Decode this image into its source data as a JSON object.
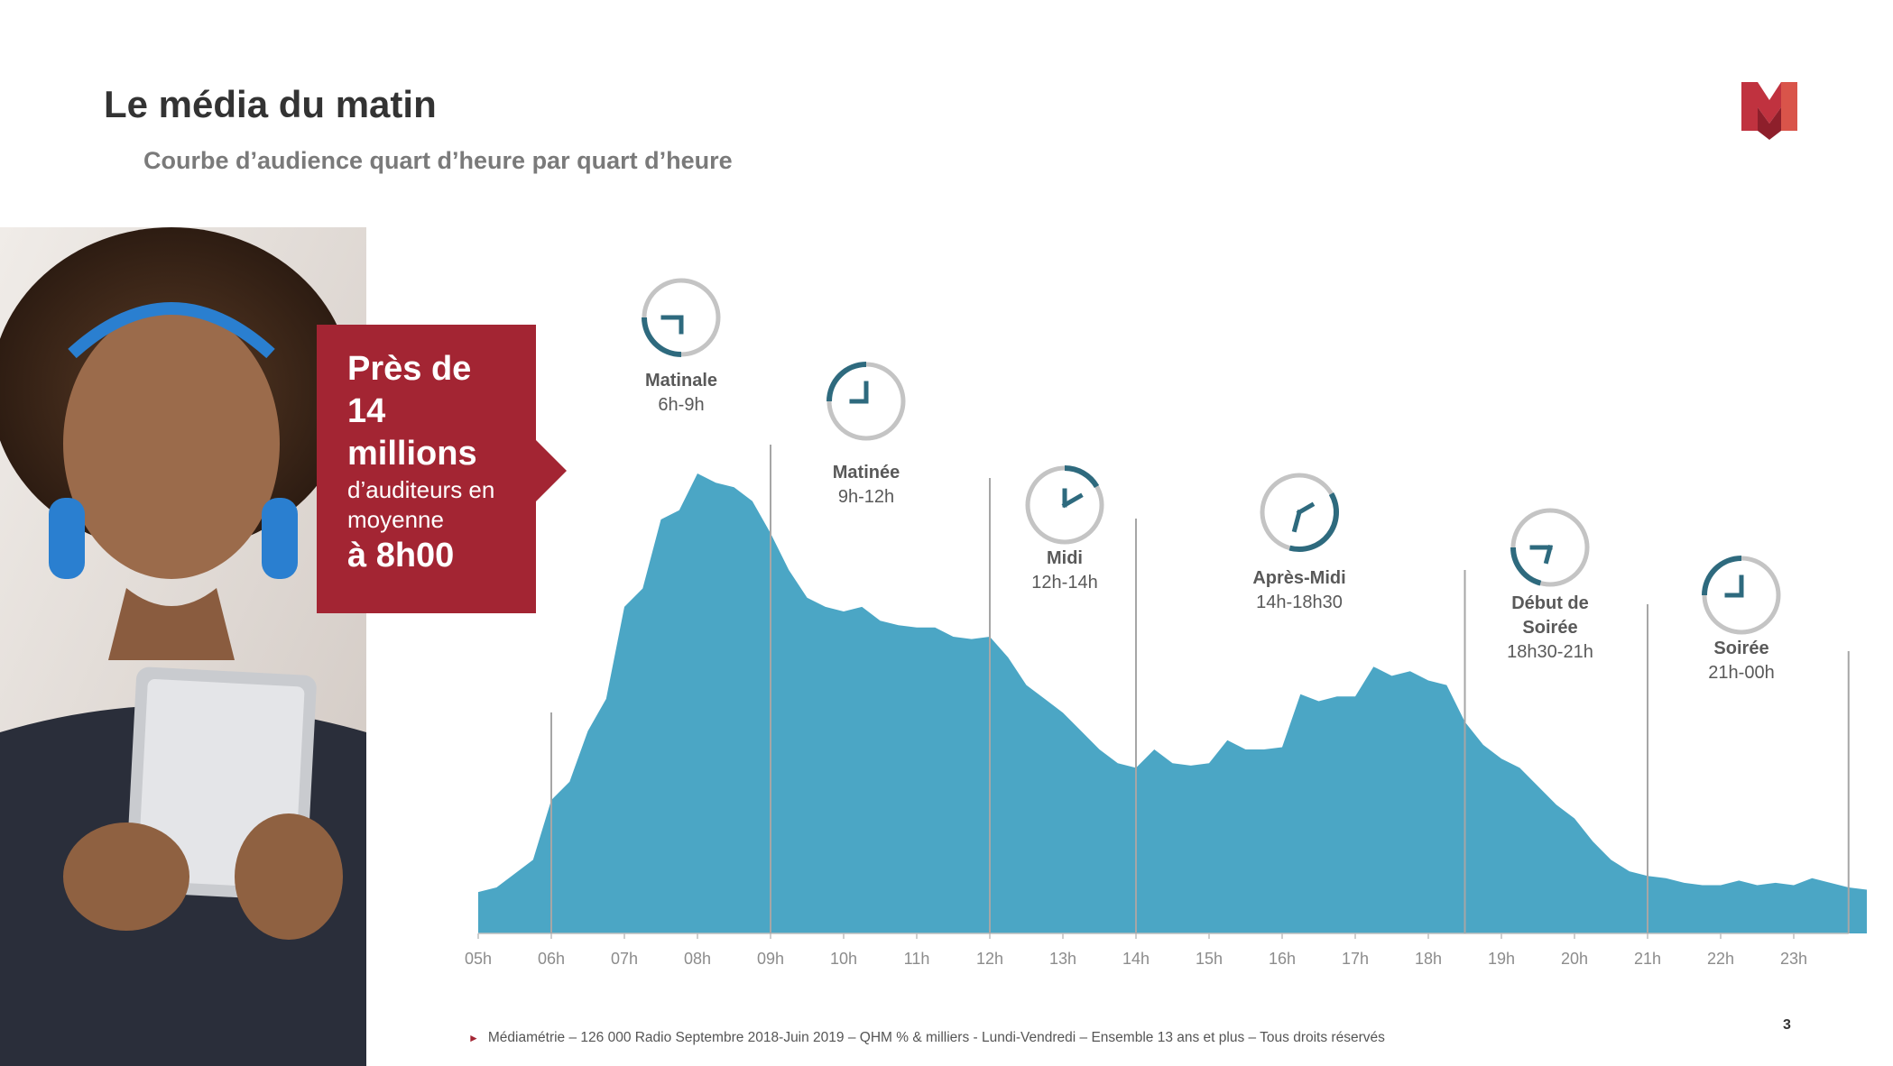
{
  "header": {
    "title": "Le média du matin",
    "subtitle": "Courbe d’audience quart d’heure par quart d’heure"
  },
  "callout": {
    "line1": "Près de",
    "line2": "14",
    "line3": "millions",
    "line4": "d’auditeurs en",
    "line5": "moyenne",
    "line6": "à 8h00"
  },
  "colors": {
    "area": "#4ba6c5",
    "brand_red": "#a32533",
    "clock_teal": "#2e6a7e",
    "clock_grey": "#c4c4c4"
  },
  "chart_data": {
    "type": "area",
    "x_ticks": [
      "05h",
      "06h",
      "07h",
      "08h",
      "09h",
      "10h",
      "11h",
      "12h",
      "13h",
      "14h",
      "15h",
      "16h",
      "17h",
      "18h",
      "19h",
      "20h",
      "21h",
      "22h",
      "23h"
    ],
    "x_start_hour": 5,
    "x_end_hour": 23.75,
    "step_hours": 0.25,
    "ylim": [
      0,
      100
    ],
    "values": [
      9,
      10,
      13,
      16,
      29,
      33,
      44,
      51,
      71,
      75,
      90,
      92,
      100,
      98,
      97,
      94,
      87,
      79,
      73,
      71,
      70,
      71,
      68,
      67,
      66.5,
      66.5,
      64.5,
      64,
      64.5,
      60,
      54,
      51,
      48,
      44,
      40,
      37,
      36,
      40,
      37,
      36.5,
      37,
      42,
      40,
      40,
      40.5,
      52,
      50.5,
      51.5,
      51.5,
      58,
      56,
      57,
      55,
      54,
      46,
      41,
      38,
      36,
      32,
      28,
      25,
      20,
      16,
      13.5,
      12.5,
      12,
      11,
      10.5,
      10.5,
      11.5,
      10.5,
      11,
      10.5,
      12,
      11,
      10,
      9.5
    ],
    "segments": [
      {
        "name": "Matinale",
        "hours": "6h-9h",
        "start": 6,
        "end": 9,
        "clock": "arc-6-9"
      },
      {
        "name": "Matinée",
        "hours": "9h-12h",
        "start": 9,
        "end": 12,
        "clock": "arc-9-12"
      },
      {
        "name": "Midi",
        "hours": "12h-14h",
        "start": 12,
        "end": 14,
        "clock": "arc-12-14"
      },
      {
        "name": "Après-Midi",
        "hours": "14h-18h30",
        "start": 14,
        "end": 18.5,
        "clock": "arc-14-1830"
      },
      {
        "name": "Début de Soirée",
        "name_line1": "Début de",
        "name_line2": "Soirée",
        "hours": "18h30-21h",
        "start": 18.5,
        "end": 21,
        "clock": "arc-1830-21"
      },
      {
        "name": "Soirée",
        "hours": "21h-00h",
        "start": 21,
        "end": 24,
        "clock": "arc-21-24"
      }
    ]
  },
  "footer": {
    "source": "Médiamétrie",
    "text": " – 126 000 Radio Septembre 2018-Juin 2019 – QHM % & milliers - Lundi-Vendredi – Ensemble 13 ans et plus – Tous droits réservés",
    "page_number": "3"
  }
}
